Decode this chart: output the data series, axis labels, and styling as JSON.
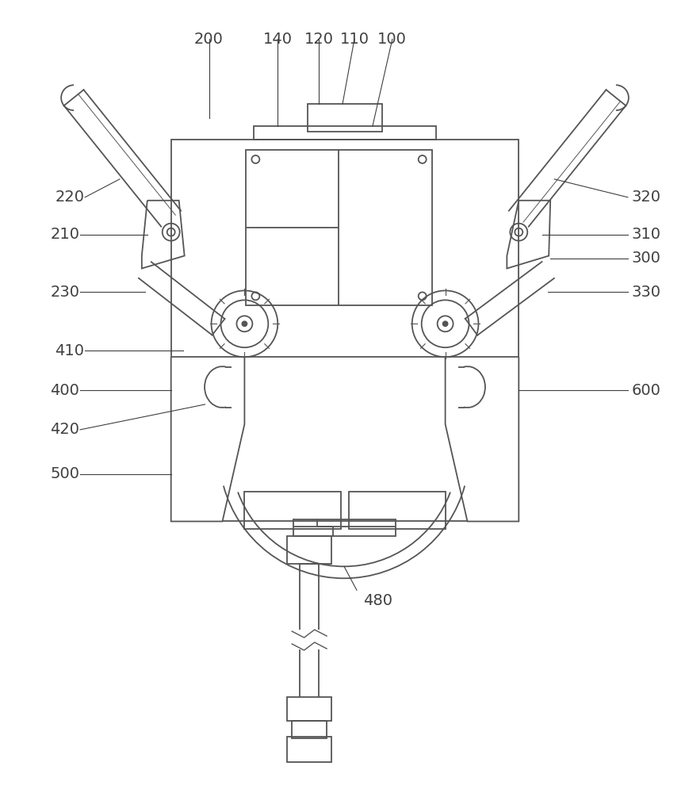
{
  "bg_color": "#ffffff",
  "line_color": "#555555",
  "lw": 1.3,
  "fig_width": 8.69,
  "fig_height": 10.0
}
